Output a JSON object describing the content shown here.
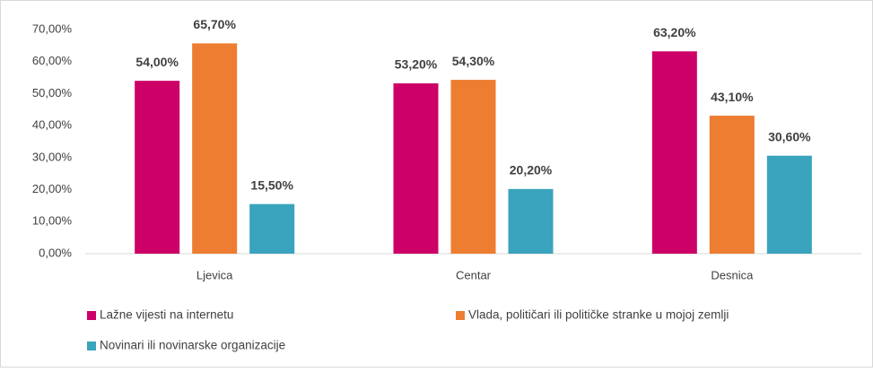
{
  "chart_data": {
    "type": "bar",
    "categories": [
      "Ljevica",
      "Centar",
      "Desnica"
    ],
    "series": [
      {
        "name": "Lažne vijesti na internetu",
        "color": "#cc0066",
        "values": [
          54.0,
          53.2,
          63.2
        ],
        "value_labels": [
          "54,00%",
          "53,20%",
          "63,20%"
        ]
      },
      {
        "name": "Vlada, političari ili političke stranke u mojoj zemlji",
        "color": "#ed7d31",
        "values": [
          65.7,
          54.3,
          43.1
        ],
        "value_labels": [
          "65,70%",
          "54,30%",
          "43,10%"
        ]
      },
      {
        "name": "Novinari ili novinarske organizacije",
        "color": "#3aa3bd",
        "values": [
          15.5,
          20.2,
          30.6
        ],
        "value_labels": [
          "15,50%",
          "20,20%",
          "30,60%"
        ]
      }
    ],
    "ylim": [
      0,
      70
    ],
    "yticks": [
      {
        "value": 0,
        "label": "0,00%"
      },
      {
        "value": 10,
        "label": "10,00%"
      },
      {
        "value": 20,
        "label": "20,00%"
      },
      {
        "value": 30,
        "label": "30,00%"
      },
      {
        "value": 40,
        "label": "40,00%"
      },
      {
        "value": 50,
        "label": "50,00%"
      },
      {
        "value": 60,
        "label": "60,00%"
      },
      {
        "value": 70,
        "label": "70,00%"
      }
    ]
  }
}
